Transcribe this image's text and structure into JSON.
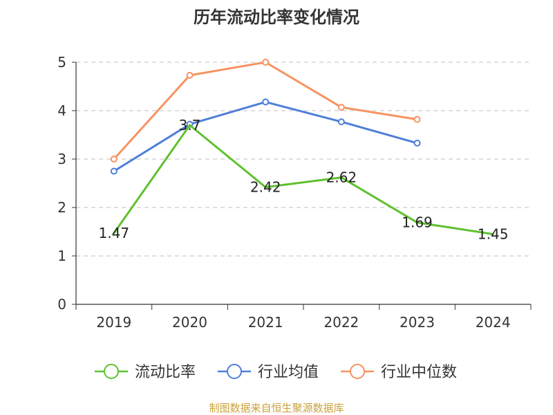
{
  "chart_data": {
    "type": "line",
    "title": "历年流动比率变化情况",
    "categories": [
      "2019",
      "2020",
      "2021",
      "2022",
      "2023",
      "2024"
    ],
    "ylim": [
      0,
      5
    ],
    "yticks": [
      "0",
      "1",
      "2",
      "3",
      "4",
      "5"
    ],
    "grid": true,
    "legend_position": "bottom",
    "series": [
      {
        "name": "流动比率",
        "color": "#5ec12e",
        "labeled": true,
        "values": [
          1.47,
          3.7,
          2.42,
          2.62,
          1.69,
          1.45
        ],
        "labels": [
          "1.47",
          "3.7",
          "2.42",
          "2.62",
          "1.69",
          "1.45"
        ]
      },
      {
        "name": "行业均值",
        "color": "#4e7fd8",
        "labeled": false,
        "values": [
          2.75,
          3.72,
          4.18,
          3.77,
          3.33,
          null
        ]
      },
      {
        "name": "行业中位数",
        "color": "#f79260",
        "labeled": false,
        "values": [
          3.0,
          4.73,
          5.0,
          4.07,
          3.82,
          null
        ]
      }
    ]
  },
  "footer": {
    "source": "制图数据来自恒生聚源数据库"
  }
}
